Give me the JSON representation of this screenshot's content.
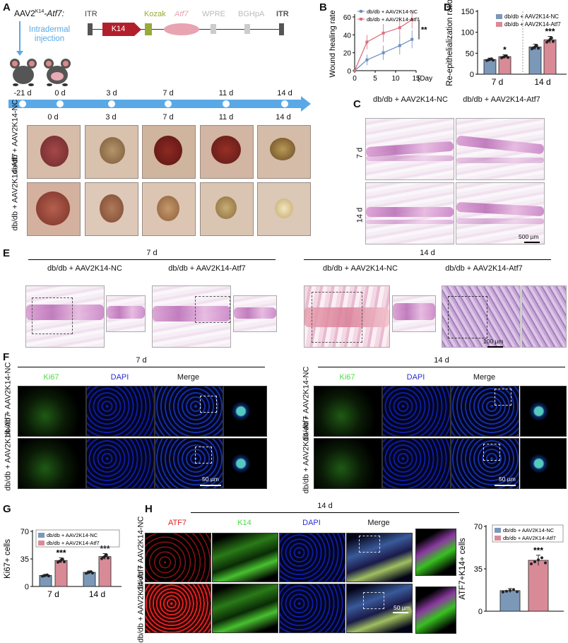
{
  "panels": {
    "A": "A",
    "B": "B",
    "C": "C",
    "D": "D",
    "E": "E",
    "F": "F",
    "G": "G",
    "H": "H"
  },
  "panelA": {
    "construct_title": "AAV2",
    "construct_sup": "K14",
    "construct_gene": "-Atf7:",
    "injection_label": "Intradermal injection",
    "elements": [
      "ITR",
      "Kozak",
      "Atf7",
      "WPRE",
      "BGHpA",
      "ITR"
    ],
    "k14_box": "K14",
    "timeline_days": [
      "-21 d",
      "0 d",
      "3 d",
      "7 d",
      "11 d",
      "14 d"
    ],
    "photo_days": [
      "0 d",
      "3 d",
      "7 d",
      "11 d",
      "14 d"
    ],
    "row_labels": [
      "db/db + AAV2K14-NC",
      "db/db + AAV2K14-Atf7"
    ],
    "colors": {
      "k14": "#b21f2c",
      "kozak": "#9aa93a",
      "atf7": "#e8a4b1",
      "itr": "#555555",
      "timeline": "#5aa9e6"
    }
  },
  "panelC": {
    "col_headers": [
      "db/db + AAV2K14-NC",
      "db/db + AAV2K14-Atf7"
    ],
    "row_labels": [
      "7 d",
      "14 d"
    ],
    "scale": "500 µm"
  },
  "panelE": {
    "group_days": [
      "7 d",
      "14 d"
    ],
    "col_headers": [
      "db/db + AAV2K14-NC",
      "db/db + AAV2K14-Atf7",
      "db/db + AAV2K14-NC",
      "db/db + AAV2K14-Atf7"
    ],
    "scale": "100 µm"
  },
  "panelF": {
    "group_days": [
      "7 d",
      "14 d"
    ],
    "channels": [
      "Ki67",
      "DAPI",
      "Merge"
    ],
    "row_labels": [
      "db/db + AAV2K14-NC",
      "db/db + AAV2K14-Atf7"
    ],
    "scale": "50 µm"
  },
  "panelH": {
    "day": "14 d",
    "channels": [
      "ATF7",
      "K14",
      "DAPI",
      "Merge"
    ],
    "row_labels": [
      "db/db + AAV2K14-NC",
      "db/db + AAV2K14-Atf7"
    ],
    "scale": "50 µm"
  },
  "chart_data": [
    {
      "id": "B",
      "type": "line",
      "ylabel": "Wound healing rate",
      "xlabel": "(Day)",
      "x": [
        0,
        3,
        7,
        11,
        14
      ],
      "xticks": [
        0,
        5,
        10,
        15
      ],
      "yticks": [
        0,
        20,
        40,
        60
      ],
      "xlim": [
        0,
        15
      ],
      "ylim": [
        0,
        60
      ],
      "series": [
        {
          "name": "db/db + AAV2K14-NC",
          "values": [
            0,
            12,
            20,
            28,
            35
          ],
          "errors": [
            0,
            6,
            8,
            10,
            10
          ],
          "color": "#6f8fbf"
        },
        {
          "name": "db/db + AAV2K14-Atf7",
          "values": [
            0,
            32,
            42,
            48,
            57
          ],
          "errors": [
            0,
            8,
            10,
            12,
            10
          ],
          "color": "#d9707e"
        }
      ],
      "annotation": "**"
    },
    {
      "id": "D",
      "type": "bar",
      "ylabel": "Re-epithelialization ratio",
      "categories": [
        "7 d",
        "14 d"
      ],
      "yticks": [
        0,
        50,
        100,
        150
      ],
      "ylim": [
        0,
        150
      ],
      "series": [
        {
          "name": "db/db + AAV2K14-NC",
          "values": [
            35,
            65
          ],
          "color": "#7b98b8"
        },
        {
          "name": "db/db + AAV2K14-Atf7",
          "values": [
            42,
            82
          ],
          "color": "#d98a97"
        }
      ],
      "annotations": [
        "*",
        "***"
      ]
    },
    {
      "id": "G",
      "type": "bar",
      "ylabel": "Ki67+ cells",
      "categories": [
        "7 d",
        "14 d"
      ],
      "yticks": [
        0,
        35,
        70
      ],
      "ylim": [
        0,
        70
      ],
      "series": [
        {
          "name": "db/db + AAV2K14-NC",
          "values": [
            14,
            18
          ],
          "color": "#7b98b8"
        },
        {
          "name": "db/db + AAV2K14-Atf7",
          "values": [
            33,
            38
          ],
          "color": "#d98a97"
        }
      ],
      "annotations": [
        "***",
        "***"
      ]
    },
    {
      "id": "H",
      "type": "bar",
      "ylabel": "ATF7+K14+ cells",
      "categories": [
        ""
      ],
      "yticks": [
        0,
        35,
        70
      ],
      "ylim": [
        0,
        70
      ],
      "series": [
        {
          "name": "db/db + AAV2K14-NC",
          "values": [
            17
          ],
          "color": "#7b98b8"
        },
        {
          "name": "db/db + AAV2K14-Atf7",
          "values": [
            42
          ],
          "color": "#d98a97"
        }
      ],
      "annotations": [
        "***"
      ]
    }
  ]
}
